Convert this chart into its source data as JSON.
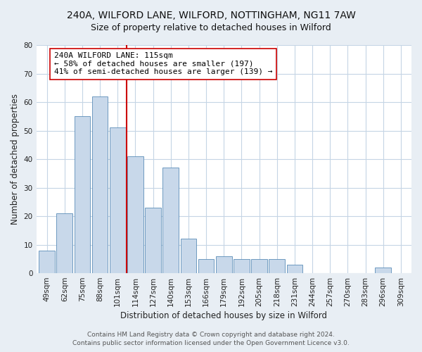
{
  "title": "240A, WILFORD LANE, WILFORD, NOTTINGHAM, NG11 7AW",
  "subtitle": "Size of property relative to detached houses in Wilford",
  "xlabel": "Distribution of detached houses by size in Wilford",
  "ylabel": "Number of detached properties",
  "categories": [
    "49sqm",
    "62sqm",
    "75sqm",
    "88sqm",
    "101sqm",
    "114sqm",
    "127sqm",
    "140sqm",
    "153sqm",
    "166sqm",
    "179sqm",
    "192sqm",
    "205sqm",
    "218sqm",
    "231sqm",
    "244sqm",
    "257sqm",
    "270sqm",
    "283sqm",
    "296sqm",
    "309sqm"
  ],
  "values": [
    8,
    21,
    55,
    62,
    51,
    41,
    23,
    37,
    12,
    5,
    6,
    5,
    5,
    5,
    3,
    0,
    0,
    0,
    0,
    2,
    0
  ],
  "bar_color": "#c8d8ea",
  "bar_edge_color": "#5b8db8",
  "reference_line_color": "#cc0000",
  "annotation_text": "240A WILFORD LANE: 115sqm\n← 58% of detached houses are smaller (197)\n41% of semi-detached houses are larger (139) →",
  "annotation_box_color": "white",
  "annotation_box_edge_color": "#cc0000",
  "ylim": [
    0,
    80
  ],
  "yticks": [
    0,
    10,
    20,
    30,
    40,
    50,
    60,
    70,
    80
  ],
  "footer_line1": "Contains HM Land Registry data © Crown copyright and database right 2024.",
  "footer_line2": "Contains public sector information licensed under the Open Government Licence v3.0.",
  "background_color": "#e8eef4",
  "plot_bg_color": "#ffffff",
  "title_fontsize": 10,
  "subtitle_fontsize": 9,
  "axis_label_fontsize": 8.5,
  "tick_fontsize": 7.5,
  "annotation_fontsize": 8,
  "footer_fontsize": 6.5,
  "ref_line_x": 4.5
}
